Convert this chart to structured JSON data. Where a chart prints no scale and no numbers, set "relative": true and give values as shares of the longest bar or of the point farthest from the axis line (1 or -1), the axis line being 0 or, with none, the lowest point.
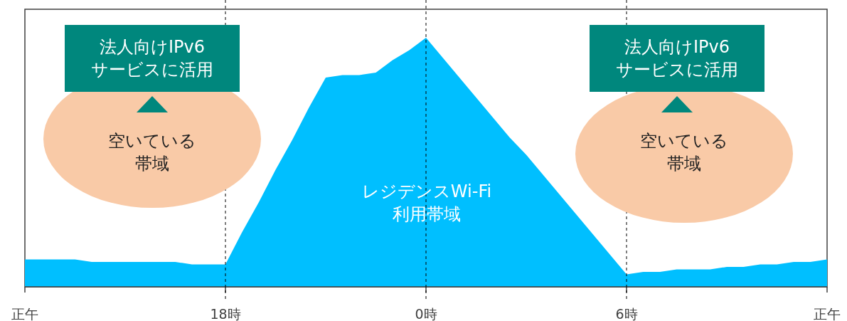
{
  "chart_data": {
    "type": "area",
    "relative": true,
    "categories": [
      "正午",
      null,
      null,
      null,
      null,
      null,
      null,
      null,
      null,
      null,
      null,
      null,
      "18時",
      null,
      null,
      null,
      null,
      null,
      null,
      null,
      null,
      null,
      null,
      null,
      "0時",
      null,
      null,
      null,
      null,
      null,
      null,
      null,
      null,
      null,
      null,
      null,
      "6時",
      null,
      null,
      null,
      null,
      null,
      null,
      null,
      null,
      null,
      null,
      null,
      "正午"
    ],
    "series": [
      {
        "color": "#00bfff",
        "values": [
          0.11,
          0.11,
          0.11,
          0.11,
          0.1,
          0.1,
          0.1,
          0.1,
          0.1,
          0.1,
          0.09,
          0.09,
          0.09,
          0.22,
          0.34,
          0.47,
          0.59,
          0.72,
          0.84,
          0.85,
          0.85,
          0.86,
          0.91,
          0.95,
          1,
          0.92,
          0.84,
          0.76,
          0.68,
          0.6,
          0.53,
          0.45,
          0.37,
          0.29,
          0.21,
          0.13,
          0.05,
          0.06,
          0.06,
          0.07,
          0.07,
          0.07,
          0.08,
          0.08,
          0.09,
          0.09,
          0.1,
          0.1,
          0.11
        ]
      }
    ],
    "ref_lines": [
      {
        "axis": "x",
        "value": "18時",
        "line_style": "dashed",
        "color": "#000000"
      },
      {
        "axis": "x",
        "value": "0時",
        "line_style": "dashed",
        "color": "#000000"
      },
      {
        "axis": "x",
        "value": "6時",
        "line_style": "dashed",
        "color": "#000000"
      }
    ],
    "annotations": [
      "法人向けIPv6サービスに活用",
      "空いている帯域",
      "レジデンスWi-Fi利用帯域",
      "法人向けIPv6サービスに活用",
      "空いている帯域"
    ],
    "grid": false
  }
}
